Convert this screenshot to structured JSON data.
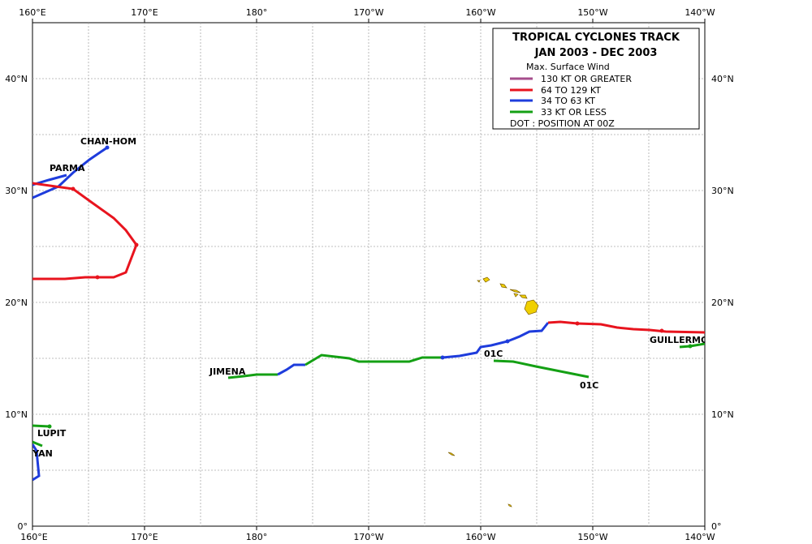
{
  "legend": {
    "title": "TROPICAL  CYCLONES  TRACK",
    "period": "JAN 2003  -  DEC 2003",
    "wind_header": "Max. Surface Wind",
    "items": [
      {
        "label": "130 KT OR GREATER",
        "color": "#a64d8c"
      },
      {
        "label": "64 TO 129 KT",
        "color": "#e8141e"
      },
      {
        "label": "34 TO 63 KT",
        "color": "#1e3cdc"
      },
      {
        "label": "33 KT OR LESS",
        "color": "#14a014"
      }
    ],
    "dot_note": "DOT : POSITION AT 00Z"
  },
  "axes": {
    "lon_labels": [
      "160°E",
      "170°E",
      "180°",
      "170°W",
      "160°W",
      "150°W",
      "140°W"
    ],
    "lat_labels": [
      "0°",
      "10°N",
      "20°N",
      "30°N",
      "40°N"
    ]
  },
  "storm_labels": {
    "chanhom": "CHAN-HOM",
    "parma": "PARMA",
    "jimena": "JIMENA",
    "c01a": "01C",
    "c01b": "01C",
    "guillermo": "GUILLERMO",
    "lupit": "LUPIT",
    "nyan": "NYAN"
  },
  "colors": {
    "island": "#f0d000",
    "grid": "#aaaaaa"
  }
}
